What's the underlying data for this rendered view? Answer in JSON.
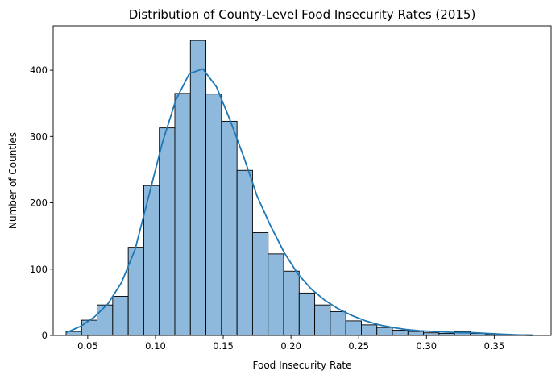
{
  "chart_data": {
    "type": "bar",
    "title": "Distribution of County-Level Food Insecurity Rates (2015)",
    "xlabel": "Food Insecurity Rate",
    "ylabel": "Number of Counties",
    "xlim": [
      0.0245,
      0.392
    ],
    "ylim": [
      0,
      467
    ],
    "x_ticks": [
      0.05,
      0.1,
      0.15,
      0.2,
      0.25,
      0.3,
      0.35
    ],
    "x_tick_labels": [
      "0.05",
      "0.10",
      "0.15",
      "0.20",
      "0.25",
      "0.30",
      "0.35"
    ],
    "y_ticks": [
      0,
      100,
      200,
      300,
      400
    ],
    "y_tick_labels": [
      "0",
      "100",
      "200",
      "300",
      "400"
    ],
    "bin_start": 0.034,
    "bin_width": 0.01147,
    "values": [
      6,
      23,
      46,
      59,
      133,
      226,
      313,
      365,
      445,
      364,
      323,
      249,
      155,
      123,
      97,
      64,
      46,
      36,
      22,
      16,
      12,
      8,
      6,
      4,
      3,
      6,
      3,
      2,
      1,
      1
    ],
    "kde_x": [
      0.034,
      0.045,
      0.055,
      0.065,
      0.075,
      0.085,
      0.095,
      0.105,
      0.115,
      0.125,
      0.135,
      0.145,
      0.155,
      0.165,
      0.175,
      0.185,
      0.195,
      0.205,
      0.215,
      0.225,
      0.235,
      0.245,
      0.255,
      0.265,
      0.275,
      0.285,
      0.295,
      0.305,
      0.315,
      0.325,
      0.335,
      0.345,
      0.355,
      0.365,
      0.378
    ],
    "kde_y": [
      4,
      14,
      28,
      48,
      80,
      130,
      210,
      290,
      355,
      395,
      402,
      375,
      325,
      270,
      210,
      165,
      125,
      93,
      70,
      53,
      40,
      30,
      22,
      16,
      12,
      9,
      7,
      6,
      5,
      4,
      4,
      3,
      2,
      1,
      0
    ],
    "grid": false,
    "colors": {
      "bar_fill": "#8fb9dc",
      "bar_edge": "#000000",
      "kde_line": "#1f77b4"
    }
  }
}
